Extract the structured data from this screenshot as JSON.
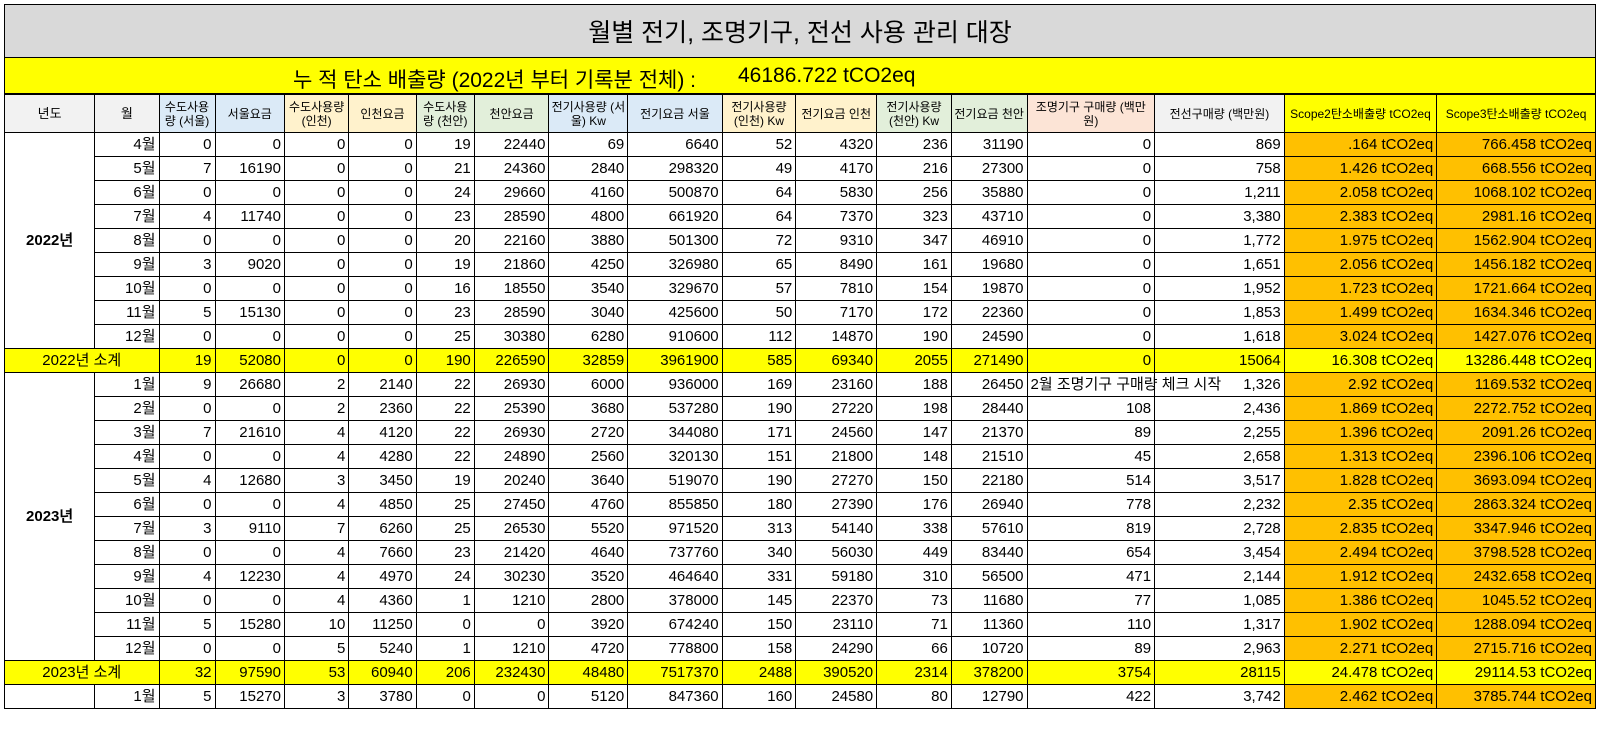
{
  "title": "월별 전기, 조명기구, 전선 사용 관리 대장",
  "total": {
    "label": "누 적 탄소 배출량 (2022년 부터 기록분 전체) :",
    "value": "46186.722 tCO2eq"
  },
  "colors": {
    "header_gray": "#d9d9d9",
    "highlight_yellow": "#ffff00",
    "scope_orange": "#ffc000"
  },
  "headers": [
    "년도",
    "월",
    "수도사용량 (서울)",
    "서울요금",
    "수도사용량 (인천)",
    "인천요금",
    "수도사용량 (천안)",
    "천안요금",
    "전기사용량 (서울) Kw",
    "전기요금 서울",
    "전기사용량 (인천) Kw",
    "전기요금 인천",
    "전기사용량 (천안) Kw",
    "전기요금 천안",
    "조명기구 구매량 (백만원)",
    "전선구매량 (백만원)",
    "Scope2탄소배출량 tCO2eq",
    "Scope3탄소배출량 tCO2eq"
  ],
  "groups": [
    {
      "year": "2022년",
      "rows": [
        [
          "4월",
          "0",
          "0",
          "0",
          "0",
          "19",
          "22440",
          "69",
          "6640",
          "52",
          "4320",
          "236",
          "31190",
          "0",
          "869",
          ".164 tCO2eq",
          "766.458 tCO2eq"
        ],
        [
          "5월",
          "7",
          "16190",
          "0",
          "0",
          "21",
          "24360",
          "2840",
          "298320",
          "49",
          "4170",
          "216",
          "27300",
          "0",
          "758",
          "1.426 tCO2eq",
          "668.556 tCO2eq"
        ],
        [
          "6월",
          "0",
          "0",
          "0",
          "0",
          "24",
          "29660",
          "4160",
          "500870",
          "64",
          "5830",
          "256",
          "35880",
          "0",
          "1,211",
          "2.058 tCO2eq",
          "1068.102 tCO2eq"
        ],
        [
          "7월",
          "4",
          "11740",
          "0",
          "0",
          "23",
          "28590",
          "4800",
          "661920",
          "64",
          "7370",
          "323",
          "43710",
          "0",
          "3,380",
          "2.383 tCO2eq",
          "2981.16 tCO2eq"
        ],
        [
          "8월",
          "0",
          "0",
          "0",
          "0",
          "20",
          "22160",
          "3880",
          "501300",
          "72",
          "9310",
          "347",
          "46910",
          "0",
          "1,772",
          "1.975 tCO2eq",
          "1562.904 tCO2eq"
        ],
        [
          "9월",
          "3",
          "9020",
          "0",
          "0",
          "19",
          "21860",
          "4250",
          "326980",
          "65",
          "8490",
          "161",
          "19680",
          "0",
          "1,651",
          "2.056 tCO2eq",
          "1456.182 tCO2eq"
        ],
        [
          "10월",
          "0",
          "0",
          "0",
          "0",
          "16",
          "18550",
          "3540",
          "329670",
          "57",
          "7810",
          "154",
          "19870",
          "0",
          "1,952",
          "1.723 tCO2eq",
          "1721.664 tCO2eq"
        ],
        [
          "11월",
          "5",
          "15130",
          "0",
          "0",
          "23",
          "28590",
          "3040",
          "425600",
          "50",
          "7170",
          "172",
          "22360",
          "0",
          "1,853",
          "1.499 tCO2eq",
          "1634.346 tCO2eq"
        ],
        [
          "12월",
          "0",
          "0",
          "0",
          "0",
          "25",
          "30380",
          "6280",
          "910600",
          "112",
          "14870",
          "190",
          "24590",
          "0",
          "1,618",
          "3.024 tCO2eq",
          "1427.076 tCO2eq"
        ]
      ],
      "subtotal": [
        "2022년 소계",
        "19",
        "52080",
        "0",
        "0",
        "190",
        "226590",
        "32859",
        "3961900",
        "585",
        "69340",
        "2055",
        "271490",
        "0",
        "15064",
        "16.308 tCO2eq",
        "13286.448 tCO2eq"
      ]
    },
    {
      "year": "2023년",
      "rows": [
        [
          "1월",
          "9",
          "26680",
          "2",
          "2140",
          "22",
          "26930",
          "6000",
          "936000",
          "169",
          "23160",
          "188",
          "26450",
          "2월 조명기구 구매량 체크 시작",
          "1,326",
          "2.92 tCO2eq",
          "1169.532 tCO2eq"
        ],
        [
          "2월",
          "0",
          "0",
          "2",
          "2360",
          "22",
          "25390",
          "3680",
          "537280",
          "190",
          "27220",
          "198",
          "28440",
          "108",
          "2,436",
          "1.869 tCO2eq",
          "2272.752 tCO2eq"
        ],
        [
          "3월",
          "7",
          "21610",
          "4",
          "4120",
          "22",
          "26930",
          "2720",
          "344080",
          "171",
          "24560",
          "147",
          "21370",
          "89",
          "2,255",
          "1.396 tCO2eq",
          "2091.26 tCO2eq"
        ],
        [
          "4월",
          "0",
          "0",
          "4",
          "4280",
          "22",
          "24890",
          "2560",
          "320130",
          "151",
          "21800",
          "148",
          "21510",
          "45",
          "2,658",
          "1.313 tCO2eq",
          "2396.106 tCO2eq"
        ],
        [
          "5월",
          "4",
          "12680",
          "3",
          "3450",
          "19",
          "20240",
          "3640",
          "519070",
          "190",
          "27270",
          "150",
          "22180",
          "514",
          "3,517",
          "1.828 tCO2eq",
          "3693.094 tCO2eq"
        ],
        [
          "6월",
          "0",
          "0",
          "4",
          "4850",
          "25",
          "27450",
          "4760",
          "855850",
          "180",
          "27390",
          "176",
          "26940",
          "778",
          "2,232",
          "2.35 tCO2eq",
          "2863.324 tCO2eq"
        ],
        [
          "7월",
          "3",
          "9110",
          "7",
          "6260",
          "25",
          "26530",
          "5520",
          "971520",
          "313",
          "54140",
          "338",
          "57610",
          "819",
          "2,728",
          "2.835 tCO2eq",
          "3347.946 tCO2eq"
        ],
        [
          "8월",
          "0",
          "0",
          "4",
          "7660",
          "23",
          "21420",
          "4640",
          "737760",
          "340",
          "56030",
          "449",
          "83440",
          "654",
          "3,454",
          "2.494 tCO2eq",
          "3798.528 tCO2eq"
        ],
        [
          "9월",
          "4",
          "12230",
          "4",
          "4970",
          "24",
          "30230",
          "3520",
          "464640",
          "331",
          "59180",
          "310",
          "56500",
          "471",
          "2,144",
          "1.912 tCO2eq",
          "2432.658 tCO2eq"
        ],
        [
          "10월",
          "0",
          "0",
          "4",
          "4360",
          "1",
          "1210",
          "2800",
          "378000",
          "145",
          "22370",
          "73",
          "11680",
          "77",
          "1,085",
          "1.386 tCO2eq",
          "1045.52 tCO2eq"
        ],
        [
          "11월",
          "5",
          "15280",
          "10",
          "11250",
          "0",
          "0",
          "3920",
          "674240",
          "150",
          "23110",
          "71",
          "11360",
          "110",
          "1,317",
          "1.902 tCO2eq",
          "1288.094 tCO2eq"
        ],
        [
          "12월",
          "0",
          "0",
          "5",
          "5240",
          "1",
          "1210",
          "4720",
          "778800",
          "158",
          "24290",
          "66",
          "10720",
          "89",
          "2,963",
          "2.271 tCO2eq",
          "2715.716 tCO2eq"
        ]
      ],
      "subtotal": [
        "2023년 소계",
        "32",
        "97590",
        "53",
        "60940",
        "206",
        "232430",
        "48480",
        "7517370",
        "2488",
        "390520",
        "2314",
        "378200",
        "3754",
        "28115",
        "24.478 tCO2eq",
        "29114.53 tCO2eq"
      ]
    },
    {
      "year": "",
      "rows": [
        [
          "1월",
          "5",
          "15270",
          "3",
          "3780",
          "0",
          "0",
          "5120",
          "847360",
          "160",
          "24580",
          "80",
          "12790",
          "422",
          "3,742",
          "2.462 tCO2eq",
          "3785.744 tCO2eq"
        ]
      ]
    }
  ]
}
